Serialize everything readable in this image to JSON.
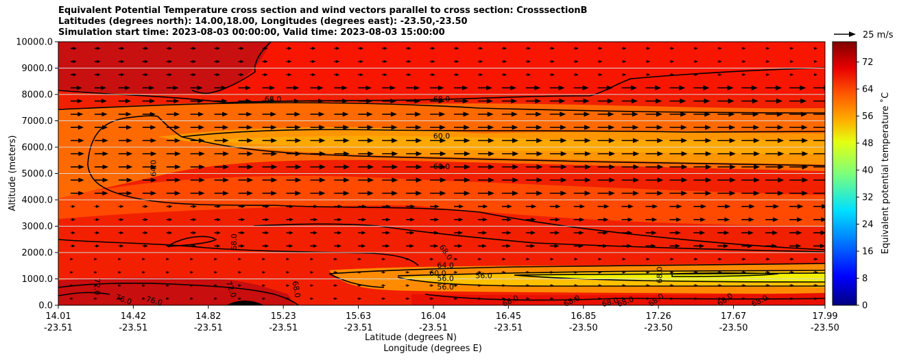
{
  "chart_data": {
    "type": "contourf",
    "title_lines": [
      "Equivalent Potential Temperature cross section and wind vectors parallel to cross section: CrosssectionB",
      "Latitudes (degrees north): 14.00,18.00, Longitudes (degrees east): -23.50,-23.50",
      "Simulation start time: 2023-08-03 00:00:00, Valid time: 2023-08-03 15:00:00"
    ],
    "ylabel": "Altitude (meters)",
    "xlabel_1": "Latitude (degrees N)",
    "xlabel_2": "Longitude (degrees E)",
    "ylim": [
      0,
      10000
    ],
    "yticks": [
      "0.0",
      "1000.0",
      "2000.0",
      "3000.0",
      "4000.0",
      "5000.0",
      "6000.0",
      "7000.0",
      "8000.0",
      "9000.0",
      "10000.0"
    ],
    "xticks": [
      {
        "lat": "14.01",
        "lon": "-23.51"
      },
      {
        "lat": "14.42",
        "lon": "-23.51"
      },
      {
        "lat": "14.82",
        "lon": "-23.51"
      },
      {
        "lat": "15.23",
        "lon": "-23.51"
      },
      {
        "lat": "15.63",
        "lon": "-23.51"
      },
      {
        "lat": "16.04",
        "lon": "-23.51"
      },
      {
        "lat": "16.45",
        "lon": "-23.51"
      },
      {
        "lat": "16.85",
        "lon": "-23.50"
      },
      {
        "lat": "17.26",
        "lon": "-23.50"
      },
      {
        "lat": "17.67",
        "lon": "-23.50"
      },
      {
        "lat": "17.99",
        "lon": "-23.50"
      }
    ],
    "colorbar": {
      "label": "Equivalent potential temperature ˚C",
      "range": [
        0,
        78
      ],
      "ticks": [
        "0",
        "8",
        "16",
        "24",
        "32",
        "40",
        "48",
        "56",
        "64",
        "72"
      ]
    },
    "quiver_key": "25 m/s",
    "contour_labels": [
      {
        "text": "68.0",
        "x": 0.28,
        "y": 7800,
        "rot": 0
      },
      {
        "text": "68.0",
        "x": 0.5,
        "y": 7800,
        "rot": 0
      },
      {
        "text": "60.0",
        "x": 0.5,
        "y": 6400,
        "rot": 0
      },
      {
        "text": "60.0",
        "x": 0.5,
        "y": 5250,
        "rot": 0
      },
      {
        "text": "64.0",
        "x": 0.125,
        "y": 5200,
        "rot": -90
      },
      {
        "text": "68.0",
        "x": 0.23,
        "y": 2400,
        "rot": -90
      },
      {
        "text": "68.0",
        "x": 0.505,
        "y": 2000,
        "rot": 55
      },
      {
        "text": "64.0",
        "x": 0.505,
        "y": 1500,
        "rot": 0
      },
      {
        "text": "60.0",
        "x": 0.495,
        "y": 1200,
        "rot": 0
      },
      {
        "text": "56.0",
        "x": 0.505,
        "y": 1000,
        "rot": 0
      },
      {
        "text": "56.0",
        "x": 0.555,
        "y": 1100,
        "rot": 0
      },
      {
        "text": "56.0",
        "x": 0.505,
        "y": 680,
        "rot": 0
      },
      {
        "text": "68.0",
        "x": 0.785,
        "y": 1150,
        "rot": -90
      },
      {
        "text": "72.0",
        "x": 0.05,
        "y": 700,
        "rot": 90
      },
      {
        "text": "76.0",
        "x": 0.085,
        "y": 200,
        "rot": 20
      },
      {
        "text": "76.0",
        "x": 0.125,
        "y": 150,
        "rot": 15
      },
      {
        "text": "72.0",
        "x": 0.225,
        "y": 600,
        "rot": 70
      },
      {
        "text": "68.0",
        "x": 0.31,
        "y": 600,
        "rot": 80
      },
      {
        "text": "68.0",
        "x": 0.59,
        "y": 150,
        "rot": -25
      },
      {
        "text": "68.0",
        "x": 0.67,
        "y": 150,
        "rot": -25
      },
      {
        "text": "68.0",
        "x": 0.72,
        "y": 100,
        "rot": -15
      },
      {
        "text": "68.0",
        "x": 0.74,
        "y": 120,
        "rot": -20
      },
      {
        "text": "68.0",
        "x": 0.78,
        "y": 180,
        "rot": -35
      },
      {
        "text": "68.0",
        "x": 0.87,
        "y": 200,
        "rot": -35
      },
      {
        "text": "68.0",
        "x": 0.915,
        "y": 150,
        "rot": -25
      }
    ]
  }
}
